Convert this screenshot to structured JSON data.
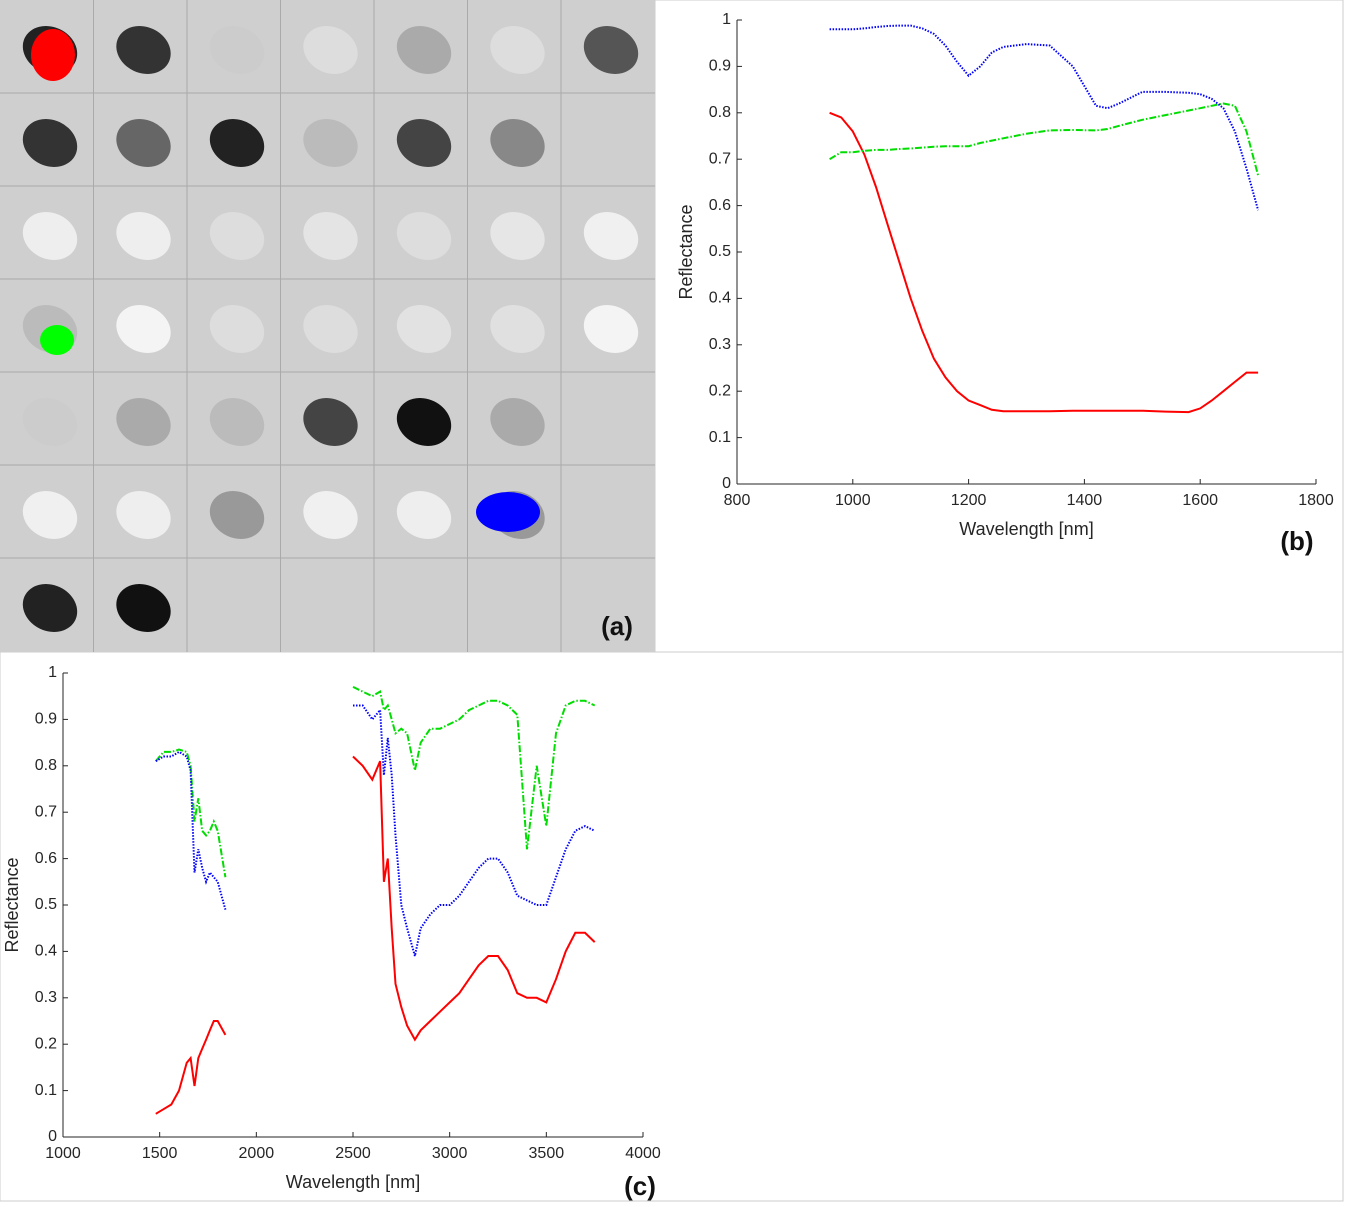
{
  "chart_data": [
    {
      "type": "image",
      "label": "(a)"
    },
    {
      "type": "line",
      "label": "(b)",
      "xlabel": "Wavelength [nm]",
      "ylabel": "Reflectance",
      "x": [
        960,
        980,
        1000,
        1020,
        1040,
        1060,
        1080,
        1100,
        1120,
        1140,
        1160,
        1180,
        1200,
        1220,
        1240,
        1260,
        1300,
        1340,
        1380,
        1420,
        1440,
        1460,
        1500,
        1540,
        1580,
        1600,
        1620,
        1640,
        1660,
        1680,
        1700
      ],
      "series": [
        {
          "color": "#ff0000",
          "dash": "solid",
          "values": [
            0.8,
            0.79,
            0.76,
            0.71,
            0.64,
            0.56,
            0.48,
            0.4,
            0.33,
            0.27,
            0.23,
            0.2,
            0.18,
            0.17,
            0.16,
            0.157,
            0.157,
            0.157,
            0.158,
            0.158,
            0.158,
            0.158,
            0.158,
            0.156,
            0.155,
            0.163,
            0.18,
            0.2,
            0.22,
            0.24,
            0.24
          ]
        },
        {
          "color": "#00dd00",
          "dash": "dashdot",
          "values": [
            0.7,
            0.715,
            0.715,
            0.718,
            0.72,
            0.72,
            0.722,
            0.723,
            0.725,
            0.727,
            0.728,
            0.728,
            0.728,
            0.735,
            0.74,
            0.745,
            0.755,
            0.762,
            0.763,
            0.762,
            0.765,
            0.772,
            0.785,
            0.795,
            0.805,
            0.81,
            0.815,
            0.82,
            0.815,
            0.76,
            0.665
          ]
        },
        {
          "color": "#0000ff",
          "dash": "dotted",
          "values": [
            0.98,
            0.98,
            0.98,
            0.982,
            0.985,
            0.987,
            0.988,
            0.988,
            0.982,
            0.97,
            0.945,
            0.91,
            0.88,
            0.9,
            0.93,
            0.942,
            0.948,
            0.945,
            0.9,
            0.815,
            0.81,
            0.82,
            0.845,
            0.845,
            0.843,
            0.84,
            0.83,
            0.81,
            0.76,
            0.68,
            0.59
          ]
        }
      ],
      "xlim": [
        800,
        1800
      ],
      "xticks": [
        800,
        1000,
        1200,
        1400,
        1600,
        1800
      ],
      "ylim": [
        0,
        1
      ],
      "yticks": [
        0,
        0.1,
        0.2,
        0.3,
        0.4,
        0.5,
        0.6,
        0.7,
        0.8,
        0.9,
        1
      ]
    },
    {
      "type": "line",
      "label": "(c)",
      "xlabel": "Wavelength [nm]",
      "ylabel": "Reflectance",
      "x": [
        1480,
        1520,
        1560,
        1600,
        1640,
        1660,
        1680,
        1700,
        1720,
        1740,
        1760,
        1780,
        1800,
        1840,
        2200,
        2500,
        2550,
        2600,
        2640,
        2660,
        2680,
        2700,
        2720,
        2750,
        2780,
        2820,
        2850,
        2900,
        2950,
        3000,
        3050,
        3100,
        3150,
        3200,
        3250,
        3300,
        3350,
        3400,
        3450,
        3500,
        3550,
        3600,
        3650,
        3700,
        3750
      ],
      "series": [
        {
          "color": "#ff0000",
          "dash": "solid",
          "values": [
            0.05,
            0.06,
            0.07,
            0.1,
            0.16,
            0.17,
            0.11,
            0.17,
            0.19,
            0.21,
            0.23,
            0.25,
            0.25,
            0.22,
            null,
            0.82,
            0.8,
            0.77,
            0.81,
            0.55,
            0.6,
            0.45,
            0.33,
            0.28,
            0.24,
            0.21,
            0.23,
            0.25,
            0.27,
            0.29,
            0.31,
            0.34,
            0.37,
            0.39,
            0.39,
            0.36,
            0.31,
            0.3,
            0.3,
            0.29,
            0.34,
            0.4,
            0.44,
            0.44,
            0.42
          ]
        },
        {
          "color": "#00dd00",
          "dash": "dashdot",
          "values": [
            0.81,
            0.83,
            0.83,
            0.835,
            0.83,
            0.8,
            0.68,
            0.73,
            0.66,
            0.65,
            0.66,
            0.68,
            0.66,
            0.56,
            null,
            0.97,
            0.96,
            0.95,
            0.96,
            0.92,
            0.93,
            0.9,
            0.87,
            0.88,
            0.87,
            0.79,
            0.85,
            0.88,
            0.88,
            0.89,
            0.9,
            0.92,
            0.93,
            0.94,
            0.94,
            0.93,
            0.91,
            0.62,
            0.8,
            0.67,
            0.87,
            0.93,
            0.94,
            0.94,
            0.93
          ]
        },
        {
          "color": "#0000ff",
          "dash": "dotted",
          "values": [
            0.81,
            0.82,
            0.82,
            0.83,
            0.82,
            0.79,
            0.57,
            0.62,
            0.58,
            0.55,
            0.57,
            0.56,
            0.55,
            0.49,
            null,
            0.93,
            0.93,
            0.9,
            0.92,
            0.78,
            0.86,
            0.78,
            0.65,
            0.5,
            0.45,
            0.39,
            0.45,
            0.48,
            0.5,
            0.5,
            0.52,
            0.55,
            0.58,
            0.6,
            0.6,
            0.57,
            0.52,
            0.51,
            0.5,
            0.5,
            0.56,
            0.62,
            0.66,
            0.67,
            0.66
          ]
        }
      ],
      "xlim": [
        1000,
        4000
      ],
      "xticks": [
        1000,
        1500,
        2000,
        2500,
        3000,
        3500,
        4000
      ],
      "ylim": [
        0,
        1
      ],
      "yticks": [
        0,
        0.1,
        0.2,
        0.3,
        0.4,
        0.5,
        0.6,
        0.7,
        0.8,
        0.9,
        1
      ]
    }
  ]
}
